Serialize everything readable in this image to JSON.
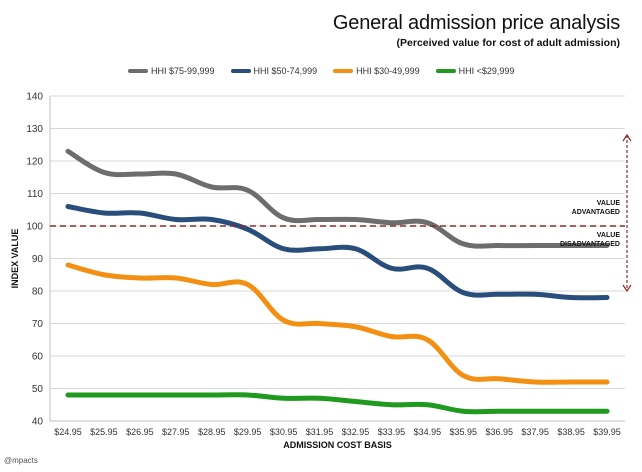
{
  "brand": "@mpacts",
  "chart_data": {
    "type": "line",
    "title": "General admission price analysis",
    "subtitle": "(Perceived value for cost of adult admission)",
    "xlabel": "ADMISSION COST BASIS",
    "ylabel": "INDEX VALUE",
    "ylim": [
      40,
      140
    ],
    "yticks": [
      40,
      50,
      60,
      70,
      80,
      90,
      100,
      110,
      120,
      130,
      140
    ],
    "grid": true,
    "legend_position": "top",
    "categories": [
      "$24.95",
      "$25.95",
      "$26.95",
      "$27.95",
      "$28.95",
      "$29.95",
      "$30.95",
      "$31.95",
      "$32.95",
      "$33.95",
      "$34.95",
      "$35.95",
      "$36.95",
      "$37.95",
      "$38.95",
      "$39.95"
    ],
    "series": [
      {
        "name": "HHI $75-99,999",
        "color": "#6d6d6d",
        "values": [
          123,
          116.5,
          116,
          116,
          112,
          111,
          102.5,
          102,
          102,
          101,
          101,
          94.5,
          94,
          94,
          94,
          94
        ]
      },
      {
        "name": "HHI $50-74,999",
        "color": "#2a4e7b",
        "values": [
          106,
          104,
          104,
          102,
          102,
          99,
          93,
          93,
          93,
          87,
          87,
          79.5,
          79,
          79,
          78,
          78
        ]
      },
      {
        "name": "HHI $30-49,999",
        "color": "#f39013",
        "values": [
          88,
          85,
          84,
          84,
          82,
          82,
          71,
          70,
          69,
          66,
          65,
          54,
          53,
          52,
          52,
          52
        ]
      },
      {
        "name": "HHI <$29,999",
        "color": "#1f9a1f",
        "values": [
          48,
          48,
          48,
          48,
          48,
          48,
          47,
          47,
          46,
          45,
          45,
          43,
          43,
          43,
          43,
          43
        ]
      }
    ],
    "reference_line": {
      "value": 100,
      "color": "#8b2a2a"
    },
    "annotations": {
      "above": [
        "VALUE",
        "ADVANTAGED"
      ],
      "below": [
        "VALUE",
        "DISADVANTAGED"
      ],
      "arrow_range": [
        80,
        128
      ]
    }
  }
}
